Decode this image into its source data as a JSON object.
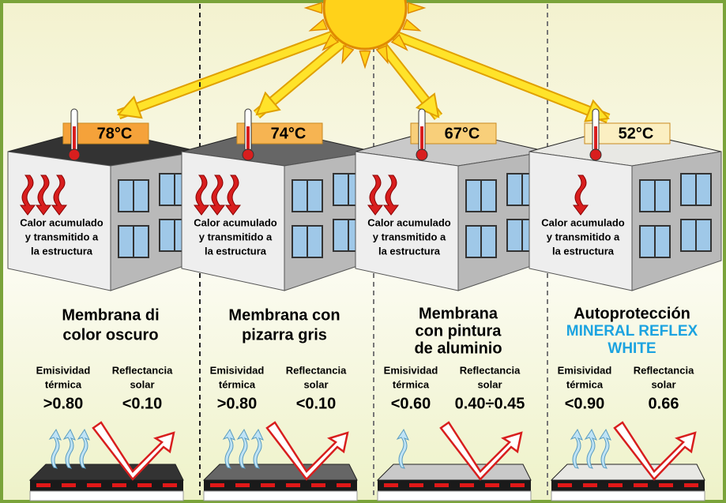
{
  "panels": [
    {
      "temperature": "78°C",
      "heat_note": [
        "Calor acumulado",
        "y transmitido a",
        "la estructura"
      ],
      "title": [
        "Membrana di",
        "color oscuro"
      ],
      "emissivity_label": [
        "Emisividad",
        "térmica"
      ],
      "emissivity_value": ">0.80",
      "reflectance_label": [
        "Reflectancia",
        "solar"
      ],
      "reflectance_value": "<0.10"
    },
    {
      "temperature": "74°C",
      "heat_note": [
        "Calor acumulado",
        "y transmitido a",
        "la estructura"
      ],
      "title": [
        "Membrana con",
        "pizarra gris"
      ],
      "emissivity_label": [
        "Emisividad",
        "térmica"
      ],
      "emissivity_value": ">0.80",
      "reflectance_label": [
        "Reflectancia",
        "solar"
      ],
      "reflectance_value": "<0.10"
    },
    {
      "temperature": "67°C",
      "heat_note": [
        "Calor acumulado",
        "y transmitido a",
        "la estructura"
      ],
      "title": [
        "Membrana",
        "con pintura",
        "de aluminio"
      ],
      "emissivity_label": [
        "Emisividad",
        "térmica"
      ],
      "emissivity_value": "<0.60",
      "reflectance_label": [
        "Reflectancia",
        "solar"
      ],
      "reflectance_value": "0.40÷0.45"
    },
    {
      "temperature": "52°C",
      "heat_note": [
        "Calor acumulado",
        "y transmitido a",
        "la estructura"
      ],
      "title": [
        "Autoprotección"
      ],
      "title_highlight": [
        "MINERAL REFLEX",
        "WHITE"
      ],
      "emissivity_label": [
        "Emisividad",
        "térmica"
      ],
      "emissivity_value": "<0.90",
      "reflectance_label": [
        "Reflectancia",
        "solar"
      ],
      "reflectance_value": "0.66"
    }
  ]
}
